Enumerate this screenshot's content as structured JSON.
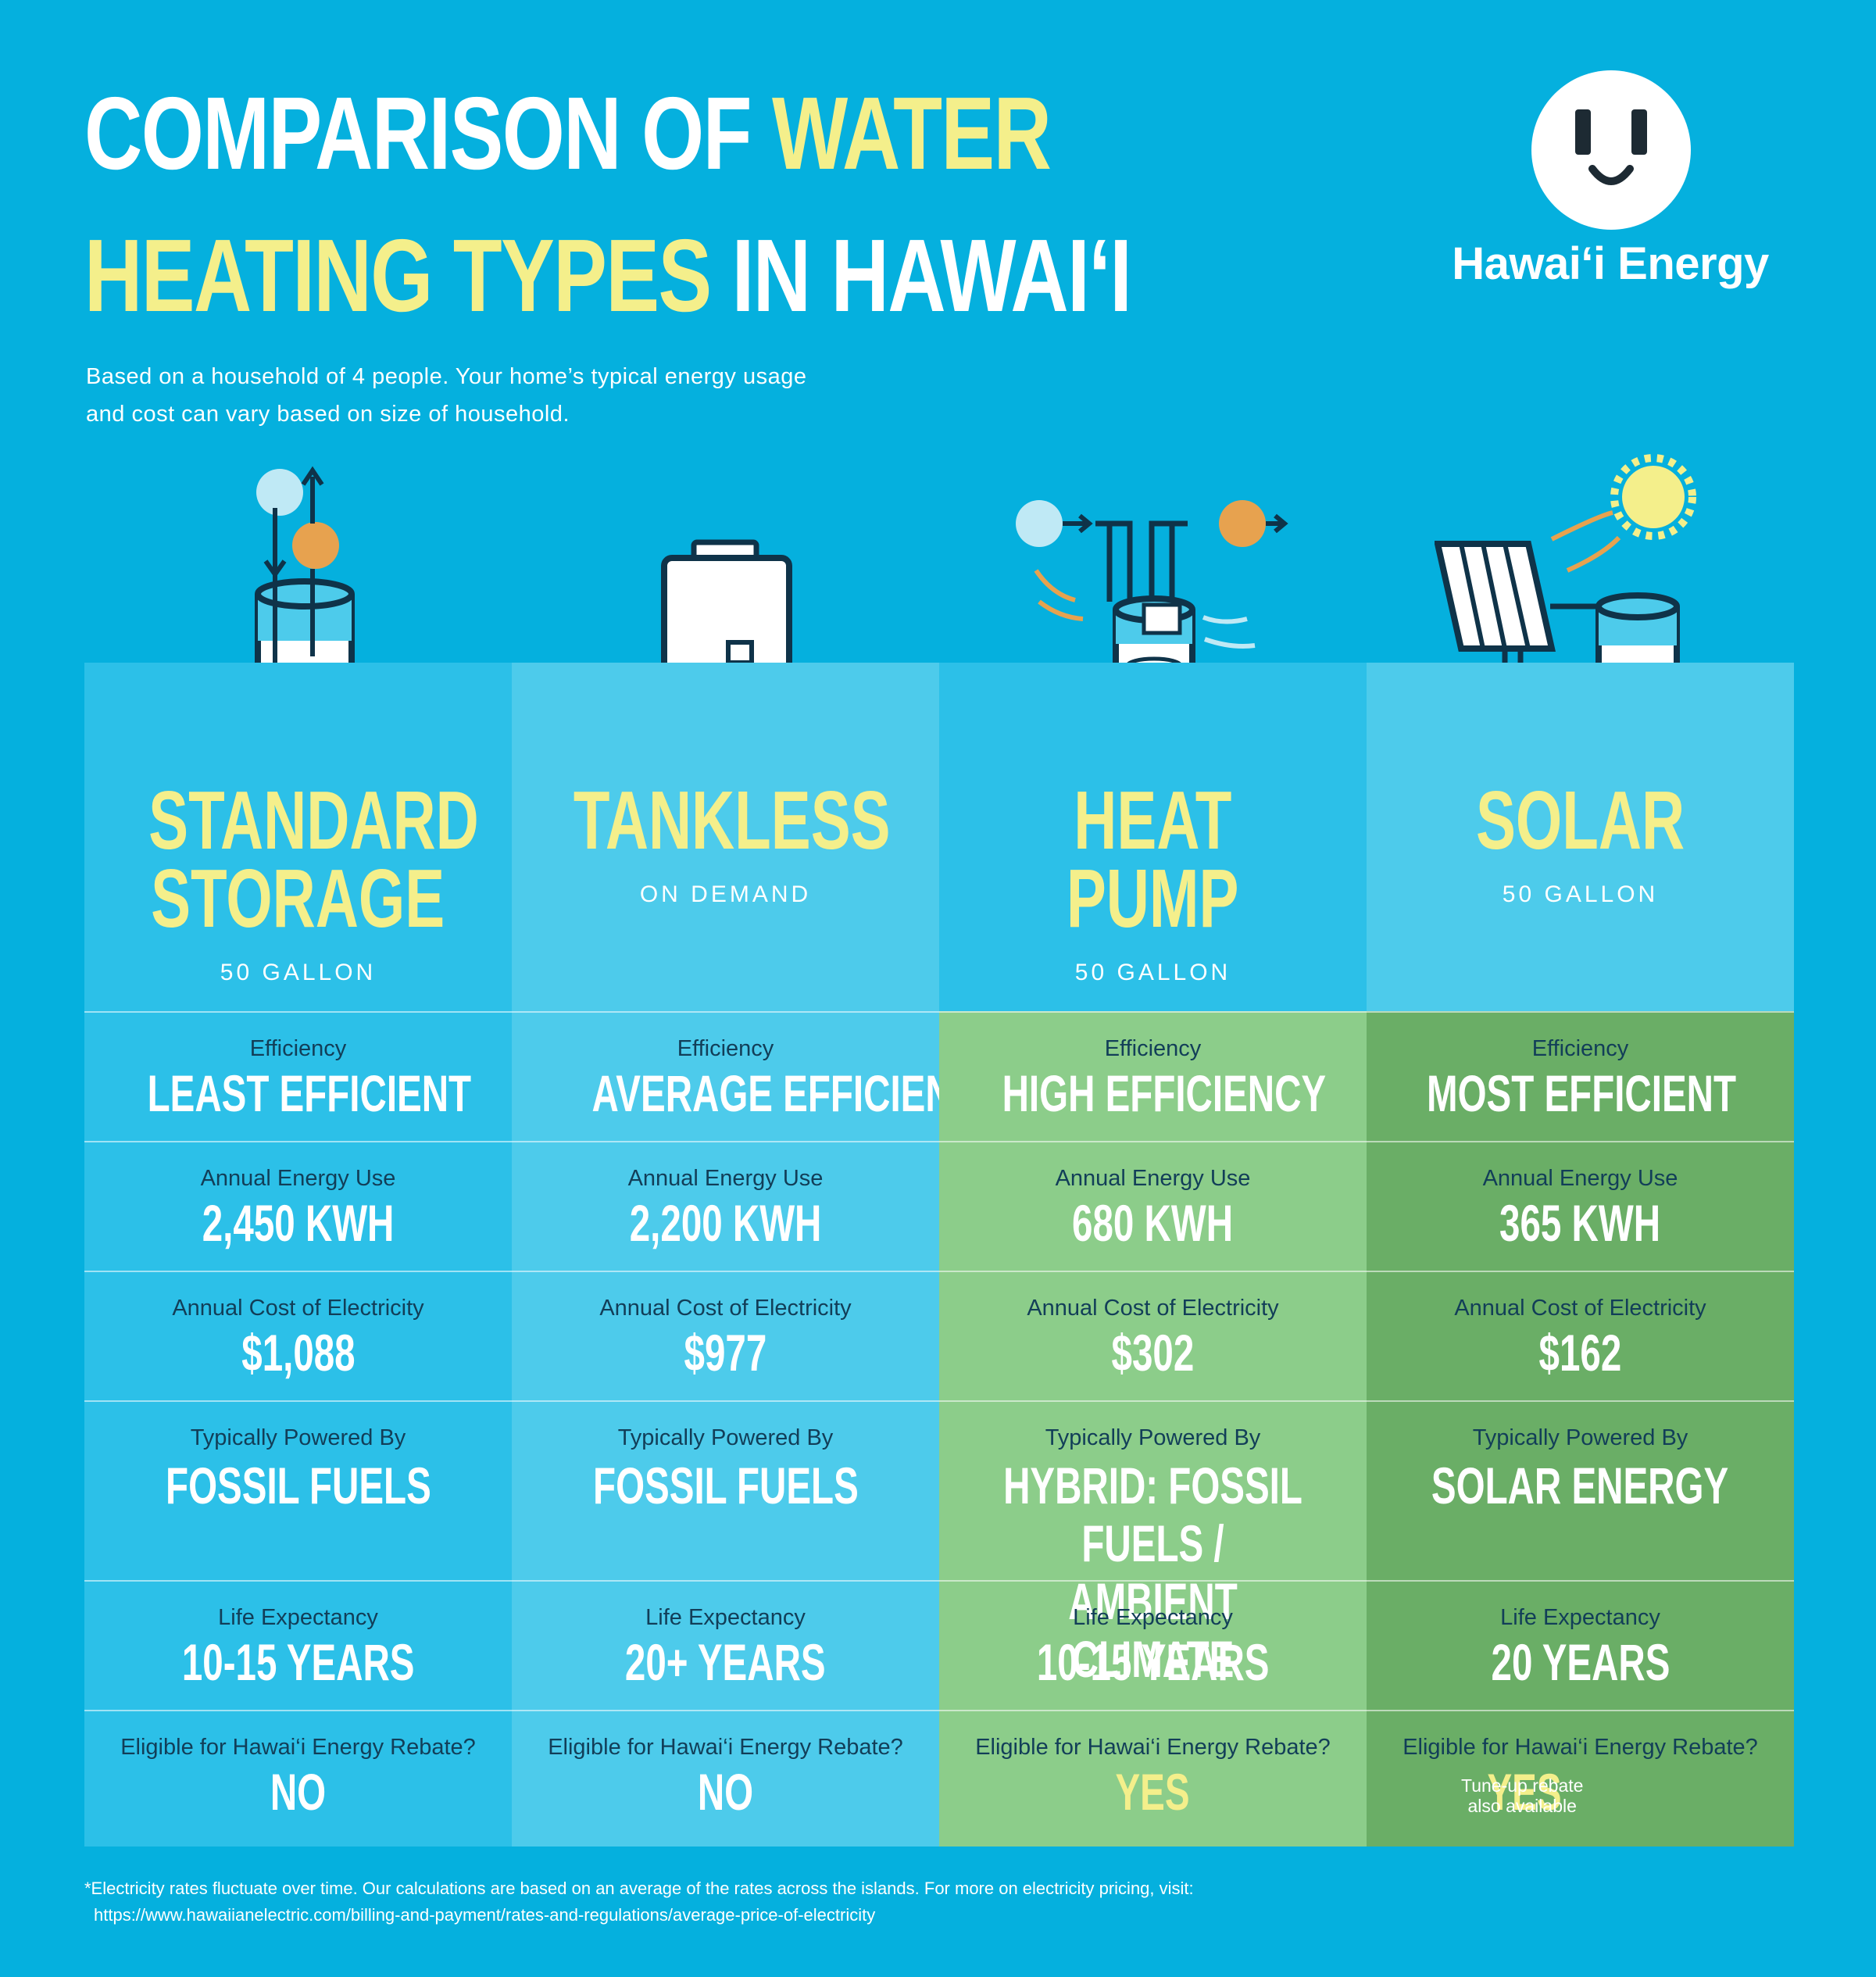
{
  "header": {
    "title_line1_white": "COMPARISON OF ",
    "title_line1_yellow": "WATER",
    "title_line2_yellow": "HEATING TYPES",
    "title_line2_white": " IN HAWAI‘I",
    "subtitle_line1": "Based on a household of 4 people. Your home’s typical energy usage",
    "subtitle_line2": "and cost can vary based on size of household."
  },
  "logo": {
    "text": "Hawai‘i Energy",
    "icon": "outlet-smile-icon"
  },
  "colors": {
    "background": "#05b0de",
    "col_blue_dark": "#2cc0e8",
    "col_blue_light": "#4dcbeb",
    "col_green_light": "#8ccd8a",
    "col_green_dark": "#6aae66",
    "accent_yellow": "#f4ef8b",
    "label_navy": "#123e58"
  },
  "row_labels": {
    "efficiency": "Efficiency",
    "energy": "Annual Energy Use",
    "cost": "Annual Cost of Electricity",
    "powered": "Typically Powered By",
    "life": "Life Expectancy",
    "rebate": "Eligible for Hawai‘i Energy Rebate?"
  },
  "columns": [
    {
      "icon": "storage-tank-icon",
      "name_line1": "STANDARD",
      "name_line2": "STORAGE",
      "capacity": "50 GALLON",
      "efficiency": "LEAST EFFICIENT",
      "energy": "2,450 KWH",
      "cost": "$1,088",
      "powered_line1": "FOSSIL FUELS",
      "powered_line2": "",
      "life": "10-15 YEARS",
      "rebate": "NO"
    },
    {
      "icon": "tankless-heater-icon",
      "name_line1": "TANKLESS",
      "name_line2": "",
      "capacity": "ON DEMAND",
      "efficiency": "AVERAGE EFFICIENCY",
      "energy": "2,200 KWH",
      "cost": "$977",
      "powered_line1": "FOSSIL FUELS",
      "powered_line2": "",
      "life": "20+ YEARS",
      "rebate": "NO"
    },
    {
      "icon": "heat-pump-icon",
      "name_line1": "HEAT",
      "name_line2": "PUMP",
      "capacity": "50 GALLON",
      "efficiency": "HIGH EFFICIENCY",
      "energy": "680 KWH",
      "cost": "$302",
      "powered_line1": "HYBRID: FOSSIL FUELS /",
      "powered_line2": "AMBIENT CLIMATE",
      "life": "10-15 YEARS",
      "rebate": "YES"
    },
    {
      "icon": "solar-panel-tank-icon",
      "name_line1": "SOLAR",
      "name_line2": "",
      "capacity": "50 GALLON",
      "efficiency": "MOST EFFICIENT",
      "energy": "365 KWH",
      "cost": "$162",
      "powered_line1": "SOLAR ENERGY",
      "powered_line2": "",
      "life": "20 YEARS",
      "rebate": "YES",
      "rebate_note_line1": "Tune-up rebate",
      "rebate_note_line2": "also available"
    }
  ],
  "footnote": {
    "text": "*Electricity rates fluctuate over time. Our calculations are based on an average of the rates across the islands. For more on electricity pricing, visit:",
    "url": "https://www.hawaiianelectric.com/billing-and-payment/rates-and-regulations/average-price-of-electricity"
  }
}
